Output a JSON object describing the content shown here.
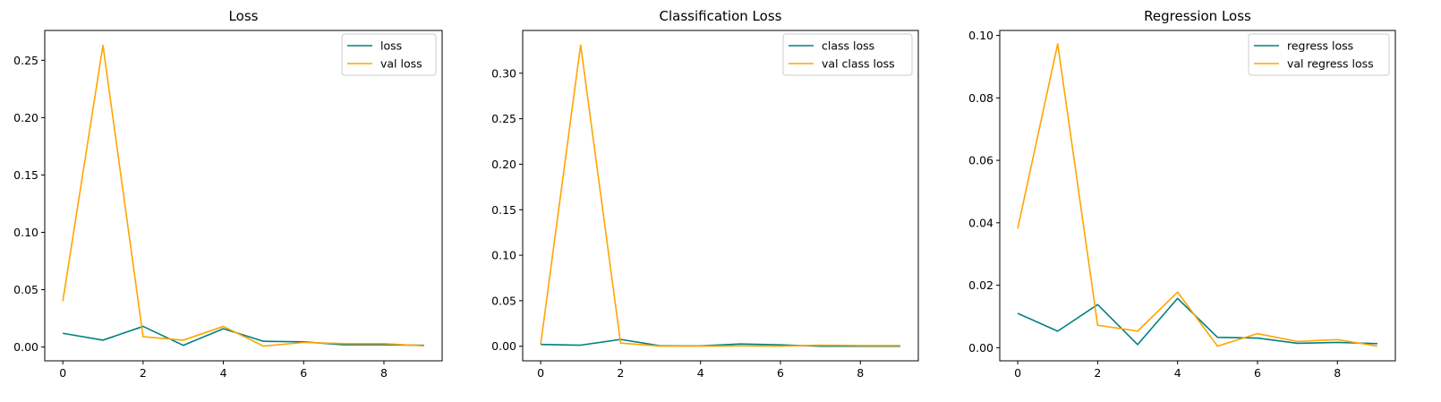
{
  "colors": {
    "train": "#008080",
    "val": "#FFA500"
  },
  "chart_data": [
    {
      "type": "line",
      "title": "Loss",
      "xlabel": "",
      "ylabel": "",
      "x": [
        0,
        1,
        2,
        3,
        4,
        5,
        6,
        7,
        8,
        9
      ],
      "series": [
        {
          "name": "loss",
          "values": [
            0.012,
            0.006,
            0.018,
            0.0015,
            0.016,
            0.005,
            0.0045,
            0.002,
            0.002,
            0.0015
          ]
        },
        {
          "name": "val loss",
          "values": [
            0.04,
            0.263,
            0.009,
            0.006,
            0.018,
            0.0008,
            0.004,
            0.003,
            0.003,
            0.001
          ]
        }
      ],
      "xlim": [
        -0.45,
        9.45
      ],
      "ylim": [
        -0.012,
        0.276
      ],
      "xticks": [
        0,
        2,
        4,
        6,
        8
      ],
      "xtick_labels": [
        "0",
        "2",
        "4",
        "6",
        "8"
      ],
      "yticks": [
        0.0,
        0.05,
        0.1,
        0.15,
        0.2,
        0.25
      ],
      "ytick_labels": [
        "0.00",
        "0.05",
        "0.10",
        "0.15",
        "0.20",
        "0.25"
      ],
      "grid": false,
      "legend": "upper right"
    },
    {
      "type": "line",
      "title": "Classification Loss",
      "xlabel": "",
      "ylabel": "",
      "x": [
        0,
        1,
        2,
        3,
        4,
        5,
        6,
        7,
        8,
        9
      ],
      "series": [
        {
          "name": "class loss",
          "values": [
            0.002,
            0.0012,
            0.0075,
            0.0005,
            0.0004,
            0.0025,
            0.0015,
            0.0,
            0.0,
            0.0
          ]
        },
        {
          "name": "val class loss",
          "values": [
            0.002,
            0.331,
            0.0035,
            0.0002,
            0.0002,
            0.0004,
            0.0002,
            0.0012,
            0.0008,
            0.0008
          ]
        }
      ],
      "xlim": [
        -0.45,
        9.45
      ],
      "ylim": [
        -0.016,
        0.347
      ],
      "xticks": [
        0,
        2,
        4,
        6,
        8
      ],
      "xtick_labels": [
        "0",
        "2",
        "4",
        "6",
        "8"
      ],
      "yticks": [
        0.0,
        0.05,
        0.1,
        0.15,
        0.2,
        0.25,
        0.3
      ],
      "ytick_labels": [
        "0.00",
        "0.05",
        "0.10",
        "0.15",
        "0.20",
        "0.25",
        "0.30"
      ],
      "grid": false,
      "legend": "upper right"
    },
    {
      "type": "line",
      "title": "Regression Loss",
      "xlabel": "",
      "ylabel": "",
      "x": [
        0,
        1,
        2,
        3,
        4,
        5,
        6,
        7,
        8,
        9
      ],
      "series": [
        {
          "name": "regress loss",
          "values": [
            0.011,
            0.0053,
            0.0138,
            0.001,
            0.0158,
            0.0033,
            0.0031,
            0.0014,
            0.0017,
            0.0013
          ]
        },
        {
          "name": "val regress loss",
          "values": [
            0.0382,
            0.0973,
            0.0072,
            0.0053,
            0.0178,
            0.0005,
            0.0045,
            0.002,
            0.0026,
            0.0005
          ]
        }
      ],
      "xlim": [
        -0.45,
        9.45
      ],
      "ylim": [
        -0.0042,
        0.1016
      ],
      "xticks": [
        0,
        2,
        4,
        6,
        8
      ],
      "xtick_labels": [
        "0",
        "2",
        "4",
        "6",
        "8"
      ],
      "yticks": [
        0.0,
        0.02,
        0.04,
        0.06,
        0.08,
        0.1
      ],
      "ytick_labels": [
        "0.00",
        "0.02",
        "0.04",
        "0.06",
        "0.08",
        "0.10"
      ],
      "grid": false,
      "legend": "upper right"
    }
  ]
}
